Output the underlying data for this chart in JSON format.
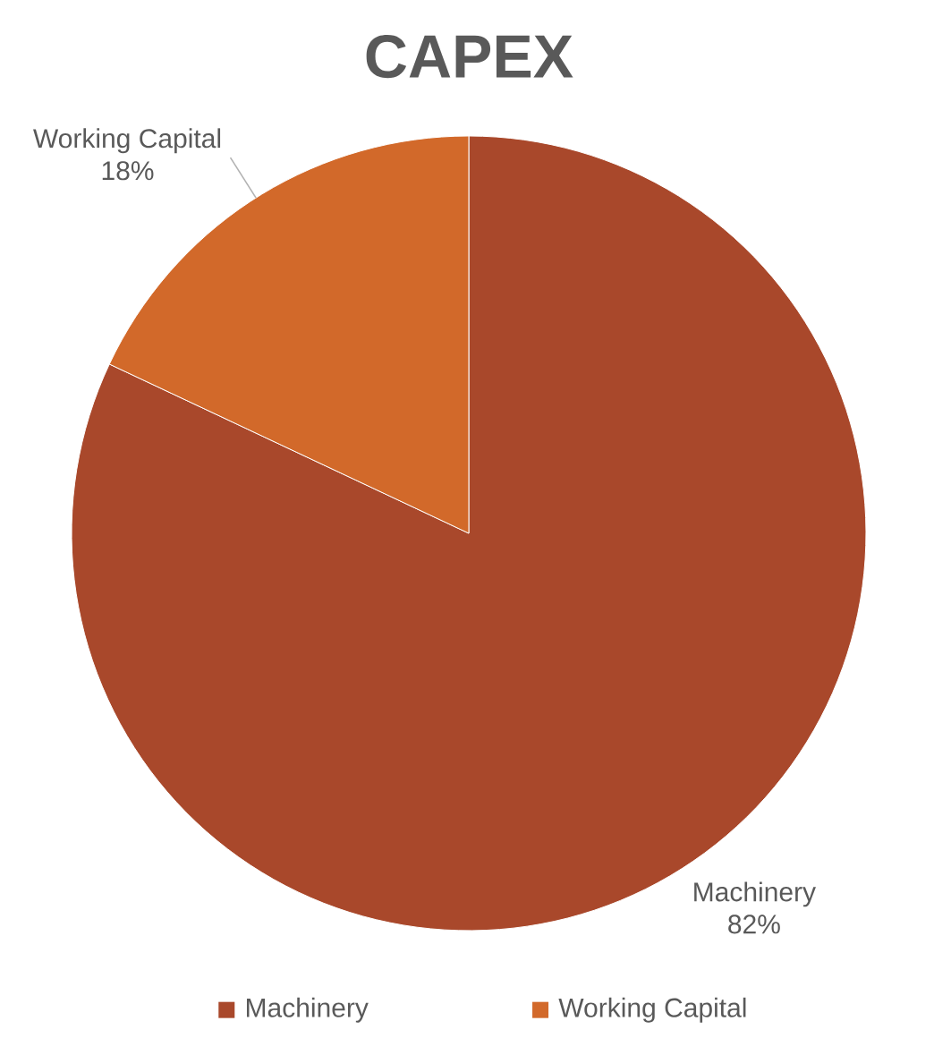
{
  "chart_data": {
    "type": "pie",
    "title": "CAPEX",
    "categories": [
      "Machinery",
      "Working Capital"
    ],
    "values": [
      82,
      18
    ],
    "value_labels": [
      "82%",
      "18%"
    ],
    "colors": [
      "#a9482b",
      "#d2692a"
    ],
    "legend": "bottom"
  }
}
